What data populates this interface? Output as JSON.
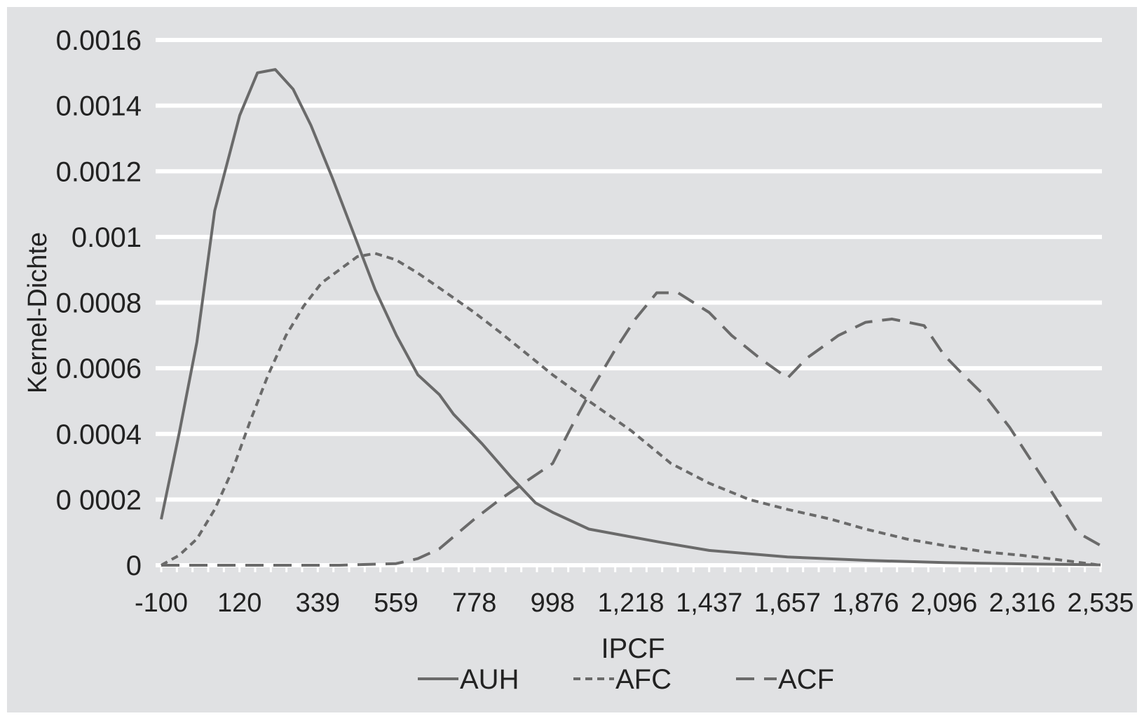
{
  "colors": {
    "background": "#e0e1e3",
    "gridline": "#ffffff",
    "series": "#6a6a6a",
    "text": "#222222"
  },
  "chart_data": {
    "type": "line",
    "title": "",
    "xlabel": "IPCF",
    "ylabel": "Kernel-Dichte",
    "xlim": [
      -100,
      2535
    ],
    "ylim": [
      0,
      0.0016
    ],
    "grid": true,
    "legend_position": "bottom",
    "x_tick_labels": [
      "-100",
      "120",
      "339",
      "559",
      "778",
      "998",
      "1,218",
      "1,437",
      "1,657",
      "1,876",
      "2,096",
      "2,316",
      "2,535"
    ],
    "y_tick_labels": [
      "0",
      "0 0002",
      "0.0004",
      "0.0006",
      "0.0008",
      "0.001",
      "0.0012",
      "0.0014",
      "0.0016"
    ],
    "y_tick_values": [
      0,
      0.0002,
      0.0004,
      0.0006,
      0.0008,
      0.001,
      0.0012,
      0.0014,
      0.0016
    ],
    "series": [
      {
        "name": "AUH",
        "style": "solid",
        "points": [
          [
            -100,
            0.00014
          ],
          [
            -50,
            0.0004
          ],
          [
            0,
            0.00068
          ],
          [
            50,
            0.00108
          ],
          [
            120,
            0.00137
          ],
          [
            170,
            0.0015
          ],
          [
            220,
            0.00151
          ],
          [
            270,
            0.00145
          ],
          [
            320,
            0.00134
          ],
          [
            380,
            0.00118
          ],
          [
            440,
            0.00101
          ],
          [
            500,
            0.00084
          ],
          [
            560,
            0.0007
          ],
          [
            620,
            0.00058
          ],
          [
            680,
            0.00052
          ],
          [
            720,
            0.00046
          ],
          [
            800,
            0.00037
          ],
          [
            880,
            0.00027
          ],
          [
            950,
            0.00019
          ],
          [
            1000,
            0.00016
          ],
          [
            1100,
            0.00011
          ],
          [
            1200,
            9e-05
          ],
          [
            1300,
            7e-05
          ],
          [
            1437,
            4.5e-05
          ],
          [
            1657,
            2.5e-05
          ],
          [
            1876,
            1.5e-05
          ],
          [
            2096,
            8e-06
          ],
          [
            2316,
            4e-06
          ],
          [
            2535,
            1e-06
          ]
        ]
      },
      {
        "name": "AFC",
        "style": "short-dash",
        "points": [
          [
            -100,
            0.0
          ],
          [
            -50,
            3e-05
          ],
          [
            0,
            8e-05
          ],
          [
            50,
            0.00017
          ],
          [
            100,
            0.00029
          ],
          [
            150,
            0.00044
          ],
          [
            200,
            0.00058
          ],
          [
            250,
            0.0007
          ],
          [
            300,
            0.00079
          ],
          [
            350,
            0.00086
          ],
          [
            400,
            0.0009
          ],
          [
            450,
            0.00094
          ],
          [
            500,
            0.00095
          ],
          [
            559,
            0.00093
          ],
          [
            620,
            0.00089
          ],
          [
            700,
            0.00083
          ],
          [
            778,
            0.00077
          ],
          [
            850,
            0.00071
          ],
          [
            930,
            0.00064
          ],
          [
            998,
            0.00058
          ],
          [
            1100,
            0.0005
          ],
          [
            1218,
            0.00041
          ],
          [
            1330,
            0.00031
          ],
          [
            1437,
            0.00025
          ],
          [
            1550,
            0.0002
          ],
          [
            1657,
            0.00017
          ],
          [
            1780,
            0.00014
          ],
          [
            1876,
            0.00011
          ],
          [
            1990,
            8e-05
          ],
          [
            2096,
            6e-05
          ],
          [
            2216,
            4e-05
          ],
          [
            2316,
            3e-05
          ],
          [
            2430,
            1.5e-05
          ],
          [
            2535,
            0.0
          ]
        ]
      },
      {
        "name": "ACF",
        "style": "long-dash",
        "points": [
          [
            -100,
            0.0
          ],
          [
            200,
            0.0
          ],
          [
            400,
            0.0
          ],
          [
            559,
            5e-06
          ],
          [
            620,
            2e-05
          ],
          [
            680,
            5e-05
          ],
          [
            778,
            0.00014
          ],
          [
            850,
            0.0002
          ],
          [
            930,
            0.00026
          ],
          [
            998,
            0.00031
          ],
          [
            1050,
            0.00042
          ],
          [
            1110,
            0.00054
          ],
          [
            1170,
            0.00065
          ],
          [
            1230,
            0.00075
          ],
          [
            1290,
            0.00083
          ],
          [
            1350,
            0.00083
          ],
          [
            1437,
            0.00077
          ],
          [
            1500,
            0.0007
          ],
          [
            1580,
            0.00063
          ],
          [
            1657,
            0.00057
          ],
          [
            1710,
            0.00063
          ],
          [
            1800,
            0.0007
          ],
          [
            1876,
            0.00074
          ],
          [
            1950,
            0.00075
          ],
          [
            2040,
            0.00073
          ],
          [
            2096,
            0.00064
          ],
          [
            2150,
            0.00058
          ],
          [
            2216,
            0.00051
          ],
          [
            2280,
            0.00042
          ],
          [
            2316,
            0.00036
          ],
          [
            2400,
            0.00022
          ],
          [
            2470,
            0.0001
          ],
          [
            2535,
            6e-05
          ]
        ]
      }
    ]
  }
}
